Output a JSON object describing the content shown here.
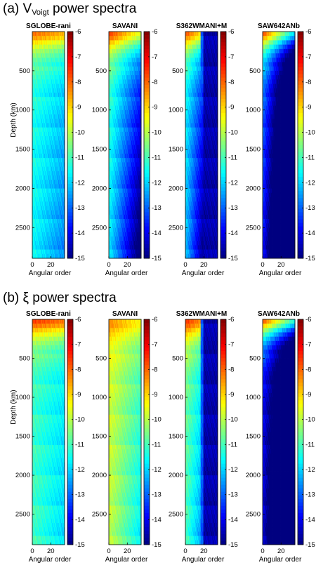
{
  "chart_data": [
    {
      "section_label": "(a)",
      "section_symbol": "V",
      "section_subscript": "Voigt",
      "section_rest": " power spectra",
      "type": "heatmap",
      "xlabel": "Angular order",
      "ylabel": "Depth (km)",
      "xticks": [
        0,
        20
      ],
      "yticks": [
        500,
        1000,
        1500,
        2000,
        2500
      ],
      "xlim": [
        0,
        35
      ],
      "ylim": [
        2891,
        0
      ],
      "colorbar": {
        "range": [
          -15,
          -6
        ],
        "ticks": [
          -6,
          -7,
          -8,
          -9,
          -10,
          -11,
          -12,
          -13,
          -14,
          -15
        ]
      },
      "panels": [
        {
          "title": "SGLOBE-rani",
          "profile": {
            "surface": -7.5,
            "mid": -11.3,
            "deep": -11.6,
            "decay_l": 0.018,
            "cut_l": 36,
            "cut_val": -11.8
          }
        },
        {
          "title": "SAVANI",
          "profile": {
            "surface": -7.0,
            "mid": -11.0,
            "deep": -11.8,
            "decay_l": 0.06,
            "cut_l": 36,
            "cut_val": -12.5
          }
        },
        {
          "title": "S362WMANI+M",
          "profile": {
            "surface": -7.2,
            "mid": -11.5,
            "deep": -12.2,
            "decay_l": 0.08,
            "cut_l": 19,
            "cut_val": -14.6
          }
        },
        {
          "title": "SAW642ANb",
          "profile": {
            "surface": -7.0,
            "mid": -12.6,
            "deep": -13.8,
            "decay_l": 0.12,
            "cut_l": 36,
            "cut_val": -14.5
          }
        }
      ]
    },
    {
      "section_label": "(b)",
      "section_symbol": "ξ",
      "section_subscript": "",
      "section_rest": " power spectra",
      "type": "heatmap",
      "xlabel": "Angular order",
      "ylabel": "Depth (km)",
      "xticks": [
        0,
        20
      ],
      "yticks": [
        500,
        1000,
        1500,
        2000,
        2500
      ],
      "xlim": [
        0,
        35
      ],
      "ylim": [
        2891,
        0
      ],
      "colorbar": {
        "range": [
          -15,
          -6
        ],
        "ticks": [
          -6,
          -7,
          -8,
          -9,
          -10,
          -11,
          -12,
          -13,
          -14,
          -15
        ]
      },
      "panels": [
        {
          "title": "SGLOBE-rani",
          "profile": {
            "surface": -7.0,
            "mid": -11.2,
            "deep": -11.0,
            "decay_l": 0.015,
            "cut_l": 36,
            "cut_val": -11.5
          }
        },
        {
          "title": "SAVANI",
          "profile": {
            "surface": -8.0,
            "mid": -9.7,
            "deep": -9.9,
            "decay_l": 0.03,
            "cut_l": 36,
            "cut_val": -10.5
          }
        },
        {
          "title": "S362WMANI+M",
          "profile": {
            "surface": -7.0,
            "mid": -10.5,
            "deep": -11.0,
            "decay_l": 0.05,
            "cut_l": 19,
            "cut_val": -14.6
          }
        },
        {
          "title": "SAW642ANb",
          "profile": {
            "surface": -7.0,
            "mid": -13.8,
            "deep": -14.2,
            "decay_l": 0.1,
            "cut_l": 36,
            "cut_val": -14.6
          }
        }
      ]
    }
  ]
}
